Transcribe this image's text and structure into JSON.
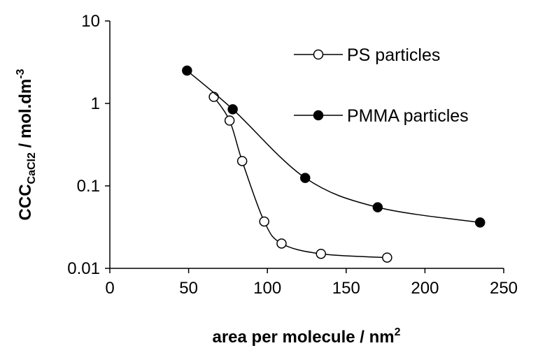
{
  "chart_data": {
    "type": "line",
    "xlabel": {
      "text": "area per molecule / nm",
      "sup": "2"
    },
    "ylabel": {
      "text": "CCC",
      "sub": "CaCl2",
      "rest": " / mol.dm",
      "sup": "-3"
    },
    "xlim": [
      0,
      250
    ],
    "xticks": [
      0,
      50,
      100,
      150,
      200,
      250
    ],
    "ylim": [
      0.01,
      10
    ],
    "yticks": [
      0.01,
      0.1,
      1,
      10
    ],
    "ylog": true,
    "grid": false,
    "series": [
      {
        "name": "PS particles",
        "color": "#000000",
        "marker_fill": "#ffffff",
        "x": [
          66,
          76,
          84,
          98,
          109,
          134,
          176
        ],
        "values": [
          1.2,
          0.62,
          0.2,
          0.037,
          0.02,
          0.015,
          0.0135
        ]
      },
      {
        "name": "PMMA particles",
        "color": "#000000",
        "marker_fill": "#000000",
        "x": [
          49,
          78,
          124,
          170,
          235
        ],
        "values": [
          2.5,
          0.85,
          0.125,
          0.055,
          0.036
        ]
      }
    ]
  }
}
